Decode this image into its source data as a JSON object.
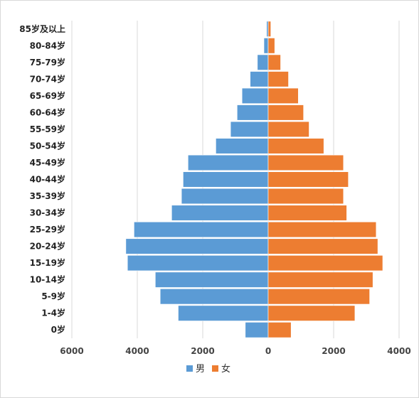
{
  "chart_data": {
    "type": "bar",
    "orientation": "horizontal",
    "layout": "population-pyramid",
    "title": "",
    "xlabel": "",
    "ylabel": "",
    "categories": [
      "0岁",
      "1-4岁",
      "5-9岁",
      "10-14岁",
      "15-19岁",
      "20-24岁",
      "25-29岁",
      "30-34岁",
      "35-39岁",
      "40-44岁",
      "45-49岁",
      "50-54岁",
      "55-59岁",
      "60-64岁",
      "65-69岁",
      "70-74岁",
      "75-79岁",
      "80-84岁",
      "85岁及以上"
    ],
    "series": [
      {
        "name": "男",
        "color": "#5B9BD5",
        "side": "left",
        "values": [
          700,
          2750,
          3300,
          3450,
          4300,
          4350,
          4100,
          2950,
          2650,
          2600,
          2450,
          1600,
          1150,
          950,
          800,
          550,
          330,
          130,
          50
        ]
      },
      {
        "name": "女",
        "color": "#ED7D31",
        "side": "right",
        "values": [
          700,
          2650,
          3100,
          3200,
          3500,
          3350,
          3300,
          2400,
          2300,
          2450,
          2300,
          1700,
          1250,
          1080,
          920,
          620,
          380,
          200,
          80
        ]
      }
    ],
    "xlim": [
      -6000,
      4000
    ],
    "xticks": [
      -6000,
      -4000,
      -2000,
      0,
      2000,
      4000
    ],
    "xtick_labels": [
      "6000",
      "4000",
      "2000",
      "0",
      "2000",
      "4000"
    ],
    "grid": true,
    "legend": "bottom"
  }
}
